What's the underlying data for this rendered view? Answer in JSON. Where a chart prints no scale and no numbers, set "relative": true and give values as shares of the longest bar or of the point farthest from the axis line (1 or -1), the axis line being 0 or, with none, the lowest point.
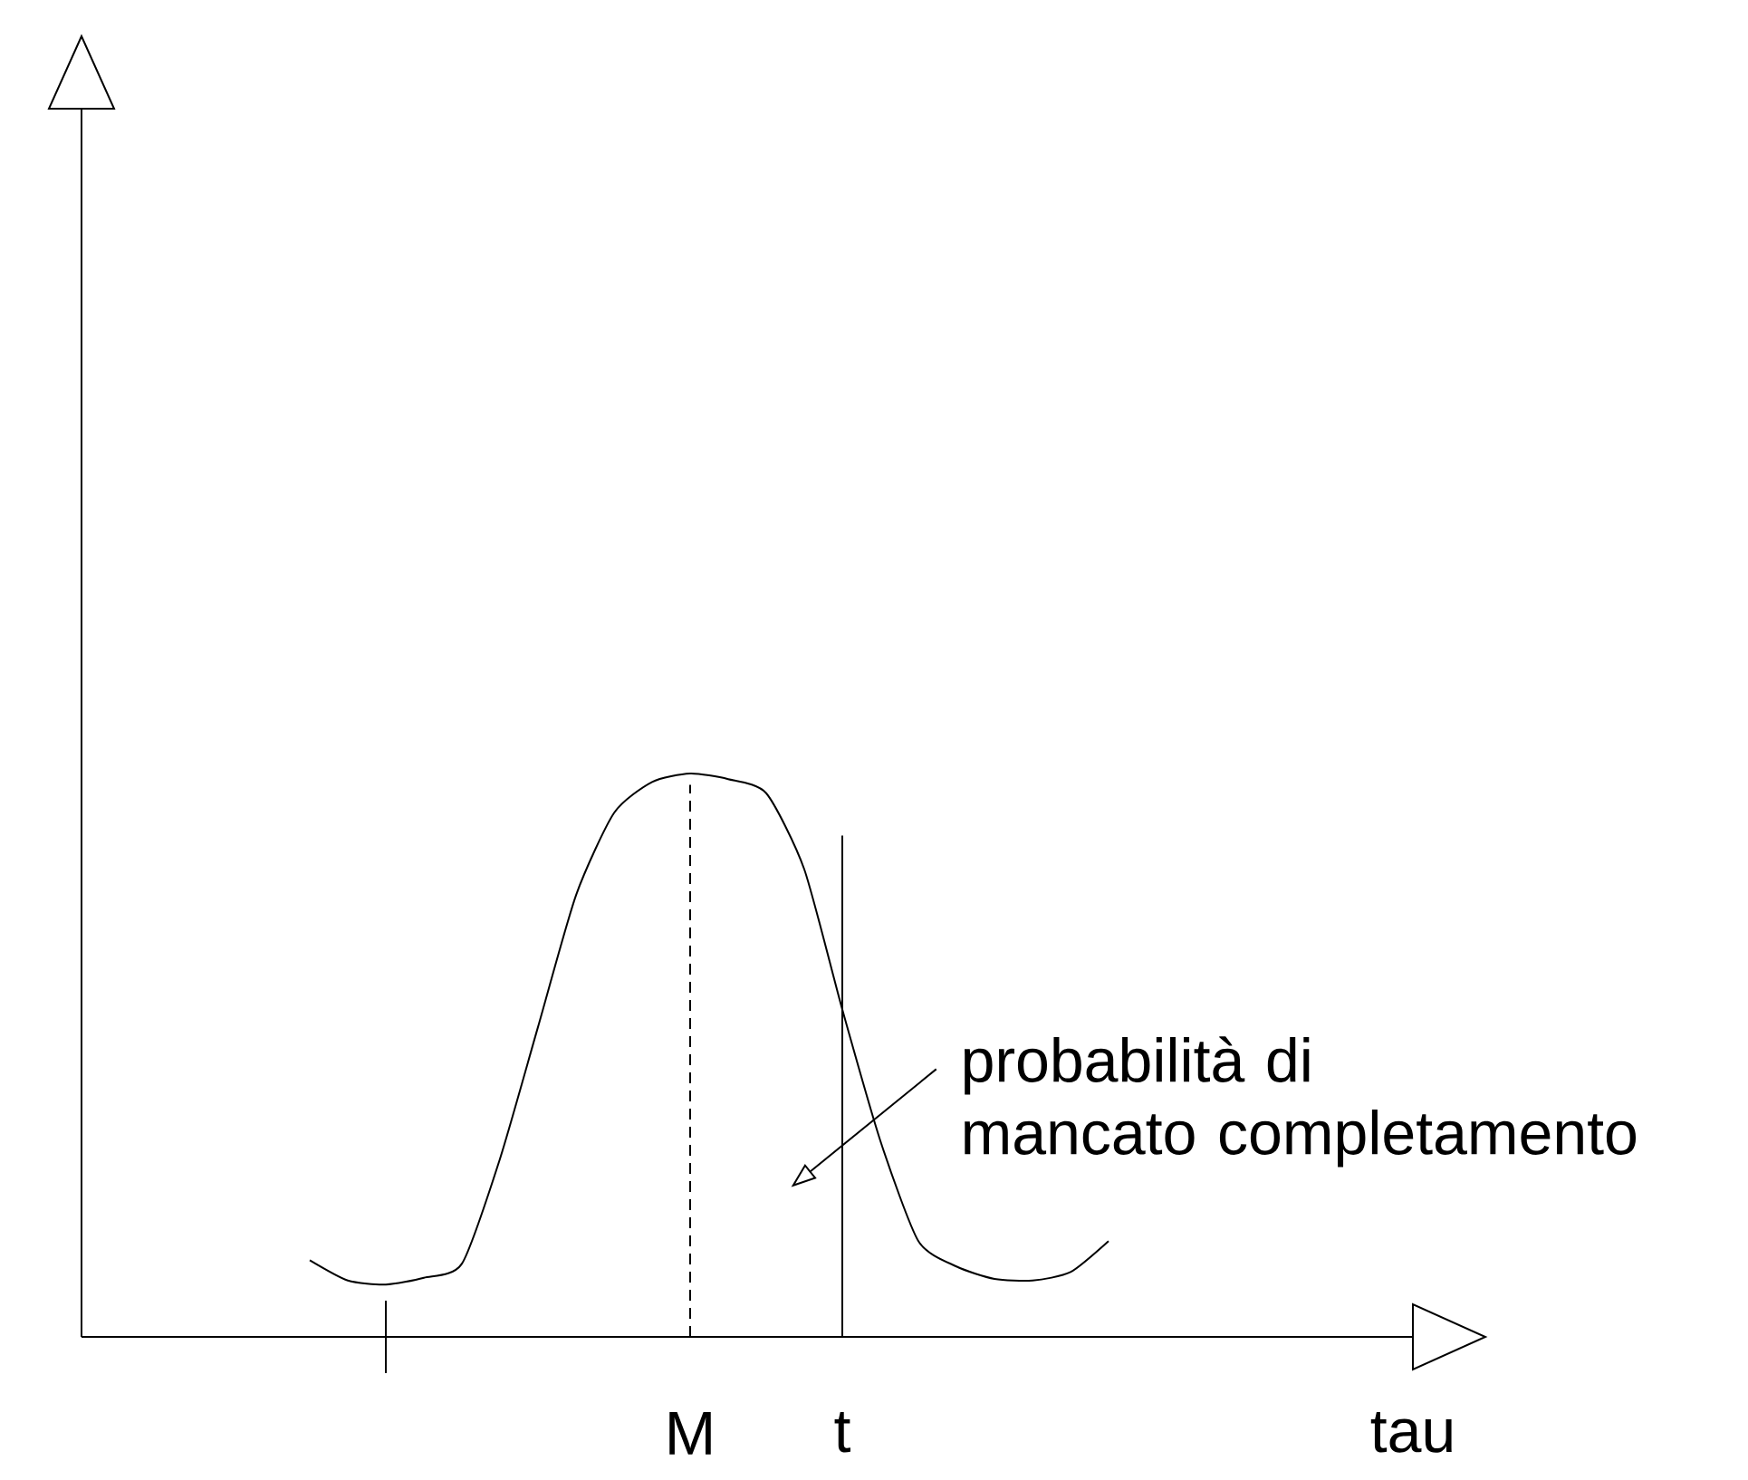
{
  "chart_data": {
    "type": "line",
    "relative": true,
    "xlabel": "tau",
    "categories": [
      null,
      null,
      null,
      null,
      null,
      null,
      null,
      null,
      null,
      null,
      null,
      null,
      null,
      null,
      null,
      null,
      "M",
      null,
      null,
      null,
      "t",
      null,
      null,
      null,
      null,
      null,
      null,
      null,
      null,
      null,
      null,
      null,
      null,
      null,
      null,
      null
    ],
    "series": [
      {
        "color": "#000000",
        "values": [
          null,
          null,
          null,
          null,
          null,
          null,
          0.136,
          0.1,
          0.093,
          0.105,
          0.13,
          0.316,
          0.55,
          0.784,
          0.93,
          0.985,
          1.0,
          0.99,
          0.965,
          0.83,
          0.581,
          0.348,
          0.17,
          0.125,
          0.103,
          0.1,
          0.115,
          0.17,
          null,
          null,
          null,
          null,
          null,
          null,
          null,
          null
        ]
      }
    ],
    "ref_lines": [
      {
        "axis": "x",
        "value": "M",
        "line_style": "dashed",
        "color": "#000000"
      },
      {
        "axis": "x",
        "value": "t",
        "line_style": "solid",
        "color": "#000000"
      }
    ],
    "annotations": [
      "probabilità di mancato completamento"
    ]
  }
}
